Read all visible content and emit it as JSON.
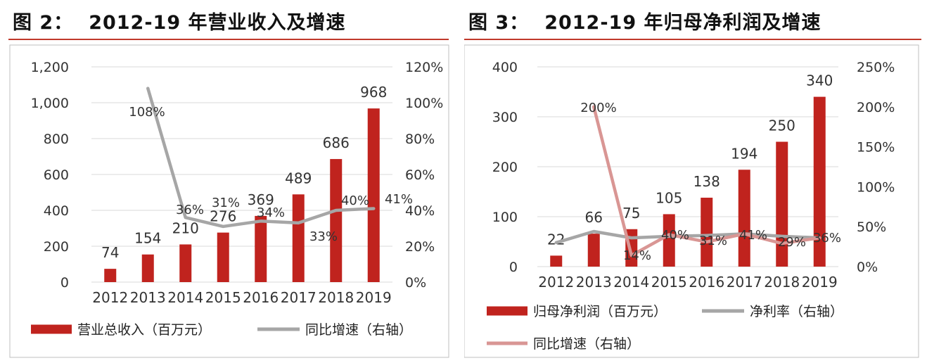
{
  "chart_data": [
    {
      "type": "bar",
      "title_prefix": "图 2：",
      "title": "2012-19 年营业收入及增速",
      "categories": [
        "2012",
        "2013",
        "2014",
        "2015",
        "2016",
        "2017",
        "2018",
        "2019"
      ],
      "ylim_left": [
        0,
        1200
      ],
      "left_ticks": [
        "0",
        "200",
        "400",
        "600",
        "800",
        "1,000",
        "1,200"
      ],
      "ylim_right": [
        0,
        1.2
      ],
      "right_ticks": [
        "0%",
        "20%",
        "40%",
        "60%",
        "80%",
        "100%",
        "120%"
      ],
      "series": [
        {
          "name": "营业总收入（百万元）",
          "kind": "bar",
          "axis": "left",
          "color": "#c0231e",
          "values": [
            74,
            154,
            210,
            276,
            369,
            489,
            686,
            968
          ],
          "labels": [
            "74",
            "154",
            "210",
            "276",
            "369",
            "489",
            "686",
            "968"
          ]
        },
        {
          "name": "同比增速（右轴）",
          "kind": "line",
          "axis": "right",
          "color": "#a6a6a6",
          "values": [
            null,
            1.08,
            0.36,
            0.31,
            0.34,
            0.33,
            0.4,
            0.41
          ],
          "labels": [
            "",
            "108%",
            "36%",
            "31%",
            "34%",
            "33%",
            "40%",
            "41%"
          ]
        }
      ]
    },
    {
      "type": "bar",
      "title_prefix": "图 3：",
      "title": "2012-19 年归母净利润及增速",
      "categories": [
        "2012",
        "2013",
        "2014",
        "2015",
        "2016",
        "2017",
        "2018",
        "2019"
      ],
      "ylim_left": [
        0,
        400
      ],
      "left_ticks": [
        "0",
        "100",
        "200",
        "300",
        "400"
      ],
      "ylim_right": [
        0,
        2.5
      ],
      "right_ticks": [
        "0%",
        "50%",
        "100%",
        "150%",
        "200%",
        "250%"
      ],
      "series": [
        {
          "name": "归母净利润（百万元）",
          "kind": "bar",
          "axis": "left",
          "color": "#c0231e",
          "values": [
            22,
            66,
            75,
            105,
            138,
            194,
            250,
            340
          ],
          "labels": [
            "22",
            "66",
            "75",
            "105",
            "138",
            "194",
            "250",
            "340"
          ]
        },
        {
          "name": "净利率（右轴）",
          "kind": "line",
          "axis": "right",
          "color": "#a6a6a6",
          "values": [
            0.3,
            0.44,
            0.36,
            0.38,
            0.39,
            0.41,
            0.38,
            0.36
          ],
          "labels": [
            "",
            "",
            "",
            "",
            "",
            "",
            "",
            ""
          ]
        },
        {
          "name": "同比增速（右轴）",
          "kind": "line",
          "axis": "right",
          "color": "#d99694",
          "values": [
            null,
            2.0,
            0.14,
            0.4,
            0.31,
            0.41,
            0.29,
            0.36
          ],
          "labels": [
            "",
            "200%",
            "14%",
            "40%",
            "31%",
            "41%",
            "29%",
            "36%"
          ]
        }
      ]
    }
  ]
}
